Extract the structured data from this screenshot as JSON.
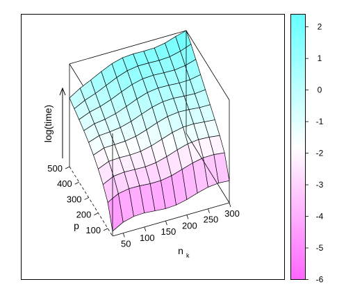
{
  "chart_data": {
    "type": "surface3d",
    "zlabel": "log(time)",
    "xlabel_main": "n",
    "xlabel_sub": "k",
    "ylabel": "p",
    "x_ticks": [
      "50",
      "100",
      "150",
      "200",
      "250",
      "300"
    ],
    "y_ticks": [
      "100",
      "200",
      "300",
      "400",
      "500"
    ],
    "x_grid": [
      25,
      50,
      75,
      100,
      125,
      150,
      175,
      200,
      225,
      250,
      275,
      300
    ],
    "y_grid": [
      50,
      100,
      150,
      200,
      250,
      300,
      350,
      400,
      450,
      500
    ],
    "xlim": [
      25,
      300
    ],
    "ylim": [
      50,
      500
    ],
    "zlim": [
      -6,
      2.4
    ],
    "colorbar": {
      "ticks": [
        "2",
        "1",
        "0",
        "-1",
        "-2",
        "-3",
        "-4",
        "-5",
        "-6"
      ],
      "tick_values": [
        2,
        1,
        0,
        -1,
        -2,
        -3,
        -4,
        -5,
        -6
      ],
      "range": [
        -6,
        2.4
      ],
      "color_low": "#ff66ff",
      "color_mid": "#ffffff",
      "color_high": "#66ffff"
    },
    "grid": true,
    "box": true
  }
}
